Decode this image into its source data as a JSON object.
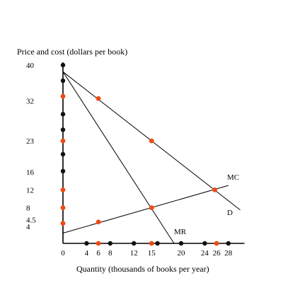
{
  "chart_data": {
    "type": "line",
    "ylabel": "Price and cost (dollars per book)",
    "xlabel": "Quantity (thousands of books per year)",
    "xlim": [
      0,
      30
    ],
    "ylim": [
      0,
      40
    ],
    "x_ticks": [
      0,
      4,
      6,
      8,
      12,
      15,
      20,
      24,
      26,
      28
    ],
    "y_ticks": [
      4,
      4.5,
      8,
      12,
      16,
      23,
      32,
      40
    ],
    "lines": [
      {
        "name": "D",
        "points": [
          [
            0,
            38.5
          ],
          [
            30,
            7.5
          ]
        ]
      },
      {
        "name": "MR",
        "points": [
          [
            0,
            38.5
          ],
          [
            18.8,
            0
          ]
        ]
      },
      {
        "name": "MC",
        "points": [
          [
            0,
            2.3
          ],
          [
            28,
            13
          ]
        ]
      }
    ],
    "red_points": [
      [
        6,
        32.5
      ],
      [
        15,
        23
      ],
      [
        25.7,
        12
      ],
      [
        6,
        4.8
      ],
      [
        15,
        8
      ],
      [
        0,
        33
      ],
      [
        0,
        23
      ],
      [
        0,
        12
      ],
      [
        0,
        8
      ],
      [
        0,
        4.5
      ],
      [
        6,
        0
      ],
      [
        15,
        0
      ],
      [
        26,
        0
      ]
    ],
    "black_points": [
      [
        0,
        40
      ],
      [
        0,
        36.5
      ],
      [
        0,
        29
      ],
      [
        0,
        25.5
      ],
      [
        0,
        20
      ],
      [
        0,
        16.2
      ],
      [
        4,
        0
      ],
      [
        8,
        0
      ],
      [
        12,
        0
      ],
      [
        16,
        0
      ],
      [
        20,
        0
      ],
      [
        24,
        0
      ],
      [
        28,
        0
      ]
    ]
  }
}
